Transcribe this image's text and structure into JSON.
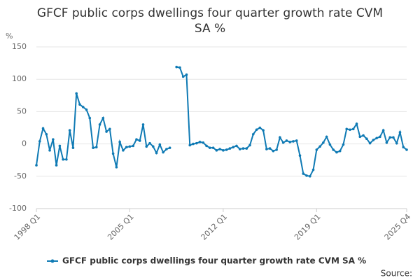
{
  "chart_data": {
    "type": "line",
    "title": "GFCF public corps dwellings four quarter growth rate CVM SA %",
    "y_axis_label": "%",
    "source": "Source:",
    "categories": [
      "1998 Q1",
      null,
      null,
      null,
      null,
      null,
      null,
      null,
      null,
      null,
      null,
      null,
      null,
      null,
      null,
      null,
      null,
      null,
      null,
      null,
      null,
      null,
      null,
      null,
      null,
      null,
      null,
      null,
      "2005 Q1",
      null,
      null,
      null,
      null,
      null,
      null,
      null,
      null,
      null,
      null,
      null,
      null,
      null,
      null,
      null,
      null,
      null,
      null,
      null,
      null,
      null,
      null,
      null,
      null,
      null,
      null,
      null,
      "2012 Q1",
      null,
      null,
      null,
      null,
      null,
      null,
      null,
      null,
      null,
      null,
      null,
      null,
      null,
      null,
      null,
      null,
      null,
      null,
      null,
      null,
      null,
      null,
      null,
      null,
      null,
      null,
      null,
      "2019 Q1",
      null,
      null,
      null,
      null,
      null,
      null,
      null,
      null,
      null,
      null,
      null,
      null,
      null,
      null,
      null,
      null,
      null,
      null,
      null,
      null,
      null,
      null,
      null,
      null,
      null,
      null,
      "2025 Q4"
    ],
    "series": [
      {
        "name": "GFCF public corps dwellings four quarter growth rate CVM SA %",
        "color": "#0f7ab4",
        "values": [
          -33,
          4,
          24,
          15,
          -10,
          7,
          -33,
          -3,
          -24,
          -24,
          21,
          -6,
          78,
          61,
          57,
          53,
          40,
          -6,
          -5,
          30,
          40,
          19,
          23,
          -15,
          -36,
          3,
          -10,
          -5,
          -4,
          -3,
          7,
          5,
          30,
          -4,
          1,
          -4,
          -14,
          -1,
          -13,
          -8,
          -6,
          null,
          119,
          118,
          104,
          107,
          -2,
          0,
          1,
          3,
          2,
          -3,
          -6,
          -6,
          -10,
          -8,
          -10,
          -9,
          -7,
          -5,
          -3,
          -8,
          -7,
          -7,
          -2,
          15,
          22,
          25,
          21,
          -8,
          -7,
          -11,
          -9,
          10,
          2,
          5,
          3,
          4,
          5,
          -18,
          -46,
          -49,
          -50,
          -40,
          -9,
          -4,
          2,
          11,
          -1,
          -9,
          -13,
          -11,
          -1,
          23,
          22,
          23,
          31,
          11,
          13,
          8,
          1,
          6,
          9,
          11,
          21,
          2,
          10,
          10,
          1,
          18,
          -5,
          -9
        ]
      }
    ],
    "ylim": [
      -100,
      150
    ],
    "yticks": [
      -100,
      -50,
      0,
      50,
      100,
      150
    ],
    "grid": true,
    "legend": "bottom"
  }
}
